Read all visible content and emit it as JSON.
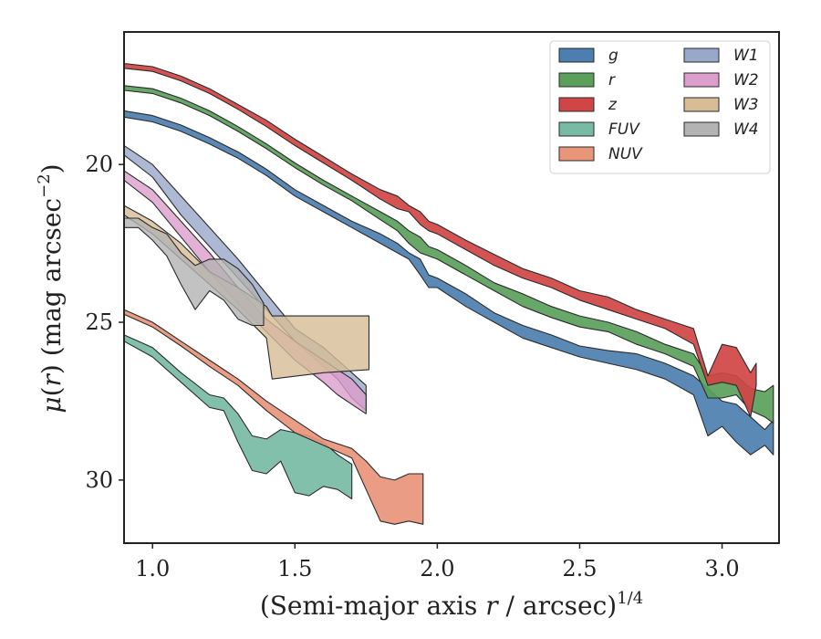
{
  "chart_data": {
    "type": "area",
    "xlabel": "(Semi-major axis r / arcsec)^1/4",
    "ylabel": "μ(r) (mag arcsec^−2)",
    "xlim": [
      0.9,
      3.2
    ],
    "ylim": [
      32.0,
      15.8
    ],
    "y_inverted": true,
    "x_ticks": [
      "1.0",
      "1.5",
      "2.0",
      "2.5",
      "3.0"
    ],
    "y_ticks": [
      "20",
      "25",
      "30"
    ],
    "legend_position": "top-right",
    "grid": false,
    "series": [
      {
        "name": "g",
        "color": "#4c7fb0",
        "x": [
          0.9,
          1.0,
          1.1,
          1.2,
          1.3,
          1.4,
          1.5,
          1.6,
          1.7,
          1.8,
          1.86,
          1.9,
          1.94,
          1.97,
          2.0,
          2.1,
          2.2,
          2.3,
          2.4,
          2.5,
          2.6,
          2.7,
          2.8,
          2.9,
          2.95,
          3.0,
          3.05,
          3.1,
          3.15,
          3.18
        ],
        "y_upper": [
          18.3,
          18.45,
          18.75,
          19.15,
          19.6,
          20.15,
          20.8,
          21.3,
          21.8,
          22.2,
          22.5,
          22.8,
          23.0,
          23.5,
          23.6,
          24.1,
          24.7,
          25.1,
          25.4,
          25.75,
          25.9,
          26.0,
          26.3,
          26.7,
          27.1,
          27.5,
          27.6,
          28.0,
          28.4,
          28.1
        ],
        "y_lower": [
          18.5,
          18.65,
          18.95,
          19.35,
          19.8,
          20.35,
          21.0,
          21.5,
          22.0,
          22.5,
          22.8,
          23.0,
          23.5,
          23.9,
          23.9,
          24.5,
          25.0,
          25.5,
          25.8,
          26.1,
          26.3,
          26.5,
          26.8,
          27.3,
          28.6,
          28.3,
          28.8,
          29.2,
          28.9,
          29.2
        ]
      },
      {
        "name": "r",
        "color": "#5aa05a",
        "x": [
          0.9,
          1.0,
          1.1,
          1.2,
          1.3,
          1.4,
          1.5,
          1.6,
          1.7,
          1.8,
          1.86,
          1.9,
          1.94,
          1.97,
          2.0,
          2.1,
          2.2,
          2.3,
          2.4,
          2.5,
          2.6,
          2.7,
          2.8,
          2.9,
          2.95,
          3.0,
          3.05,
          3.1,
          3.15,
          3.18
        ],
        "y_upper": [
          17.5,
          17.6,
          17.9,
          18.3,
          18.8,
          19.35,
          19.95,
          20.5,
          21.0,
          21.5,
          21.8,
          22.1,
          22.3,
          22.6,
          22.7,
          23.2,
          23.75,
          24.1,
          24.5,
          24.8,
          25.0,
          25.3,
          25.7,
          26.0,
          26.7,
          26.6,
          26.7,
          27.1,
          27.2,
          27.0
        ],
        "y_lower": [
          17.65,
          17.75,
          18.05,
          18.45,
          18.95,
          19.5,
          20.1,
          20.65,
          21.15,
          21.75,
          22.1,
          22.5,
          22.8,
          22.9,
          23.0,
          23.5,
          24.0,
          24.5,
          24.85,
          25.15,
          25.3,
          25.7,
          26.0,
          26.4,
          27.4,
          27.4,
          27.3,
          27.8,
          28.0,
          28.2
        ]
      },
      {
        "name": "z",
        "color": "#d04545",
        "x": [
          0.9,
          1.0,
          1.1,
          1.2,
          1.3,
          1.4,
          1.5,
          1.6,
          1.7,
          1.8,
          1.86,
          1.9,
          1.94,
          1.97,
          2.0,
          2.1,
          2.2,
          2.3,
          2.4,
          2.5,
          2.6,
          2.7,
          2.8,
          2.9,
          2.95,
          3.0,
          3.05,
          3.1,
          3.12
        ],
        "y_upper": [
          16.8,
          16.9,
          17.2,
          17.6,
          18.1,
          18.6,
          19.2,
          19.75,
          20.3,
          20.8,
          21.0,
          21.3,
          21.5,
          21.8,
          21.9,
          22.4,
          22.85,
          23.3,
          23.6,
          24.0,
          24.2,
          24.6,
          24.9,
          25.2,
          26.7,
          25.7,
          25.8,
          26.6,
          26.3
        ],
        "y_lower": [
          16.95,
          17.05,
          17.35,
          17.75,
          18.25,
          18.8,
          19.4,
          19.95,
          20.5,
          21.1,
          21.4,
          21.5,
          21.9,
          22.1,
          22.2,
          22.7,
          23.2,
          23.6,
          23.9,
          24.3,
          24.6,
          24.9,
          25.2,
          25.7,
          27.0,
          26.9,
          27.0,
          28.0,
          27.0
        ]
      },
      {
        "name": "FUV",
        "color": "#78bba4",
        "x": [
          0.9,
          1.0,
          1.1,
          1.2,
          1.25,
          1.3,
          1.35,
          1.4,
          1.45,
          1.5,
          1.55,
          1.6,
          1.65,
          1.7
        ],
        "y_upper": [
          25.4,
          25.8,
          26.6,
          27.3,
          27.4,
          27.9,
          28.6,
          28.7,
          28.4,
          28.5,
          28.6,
          28.8,
          29.2,
          29.5
        ],
        "y_lower": [
          25.6,
          26.1,
          26.9,
          27.7,
          27.8,
          28.8,
          29.7,
          29.8,
          29.4,
          30.4,
          30.5,
          30.2,
          30.3,
          30.6
        ]
      },
      {
        "name": "NUV",
        "color": "#e8957a",
        "x": [
          0.9,
          1.0,
          1.1,
          1.2,
          1.3,
          1.4,
          1.5,
          1.6,
          1.7,
          1.75,
          1.8,
          1.85,
          1.9,
          1.95
        ],
        "y_upper": [
          24.6,
          25.0,
          25.6,
          26.2,
          26.8,
          27.5,
          28.1,
          28.7,
          29.0,
          29.4,
          29.9,
          30.0,
          29.8,
          29.8
        ],
        "y_lower": [
          24.75,
          25.15,
          25.75,
          26.4,
          27.0,
          27.8,
          28.5,
          28.9,
          29.3,
          30.3,
          31.3,
          31.4,
          31.3,
          31.4
        ]
      },
      {
        "name": "W1",
        "color": "#99a8c9",
        "x": [
          0.9,
          1.0,
          1.1,
          1.2,
          1.3,
          1.4,
          1.5,
          1.6,
          1.65,
          1.7,
          1.75
        ],
        "y_upper": [
          19.4,
          20.0,
          21.0,
          22.0,
          23.0,
          24.1,
          25.2,
          25.8,
          26.2,
          26.6,
          27.0
        ],
        "y_lower": [
          19.7,
          20.4,
          21.6,
          22.6,
          23.6,
          24.6,
          25.6,
          26.4,
          26.8,
          27.4,
          27.8
        ]
      },
      {
        "name": "W2",
        "color": "#dc9ecb",
        "x": [
          0.9,
          1.0,
          1.1,
          1.2,
          1.3,
          1.4,
          1.5,
          1.6,
          1.65,
          1.7,
          1.75
        ],
        "y_upper": [
          20.2,
          20.8,
          21.8,
          22.8,
          23.9,
          24.9,
          25.6,
          26.2,
          26.5,
          26.8,
          27.3
        ],
        "y_lower": [
          20.5,
          21.2,
          22.3,
          23.4,
          24.4,
          25.3,
          26.2,
          26.9,
          27.3,
          27.6,
          27.9
        ]
      },
      {
        "name": "W3",
        "color": "#d6bd96",
        "x": [
          0.9,
          1.0,
          1.1,
          1.2,
          1.3,
          1.4,
          1.42,
          1.6,
          1.76
        ],
        "y_upper": [
          21.3,
          21.8,
          22.5,
          23.4,
          23.9,
          24.5,
          24.8,
          24.8,
          24.8
        ],
        "y_lower": [
          21.6,
          22.2,
          23.0,
          23.8,
          24.6,
          25.5,
          26.8,
          26.6,
          26.5
        ]
      },
      {
        "name": "W4",
        "color": "#b3b3b3",
        "x": [
          0.9,
          0.95,
          1.0,
          1.05,
          1.1,
          1.15,
          1.2,
          1.25,
          1.3,
          1.35,
          1.39
        ],
        "y_upper": [
          21.7,
          21.7,
          22.0,
          22.2,
          22.8,
          23.2,
          23.0,
          23.0,
          23.3,
          23.8,
          24.4
        ],
        "y_lower": [
          22.0,
          22.0,
          22.4,
          22.9,
          23.8,
          24.6,
          24.0,
          24.3,
          24.9,
          25.1,
          25.1
        ]
      }
    ],
    "legend_columns": [
      [
        "g",
        "r",
        "z",
        "FUV",
        "NUV"
      ],
      [
        "W1",
        "W2",
        "W3",
        "W4"
      ]
    ]
  }
}
